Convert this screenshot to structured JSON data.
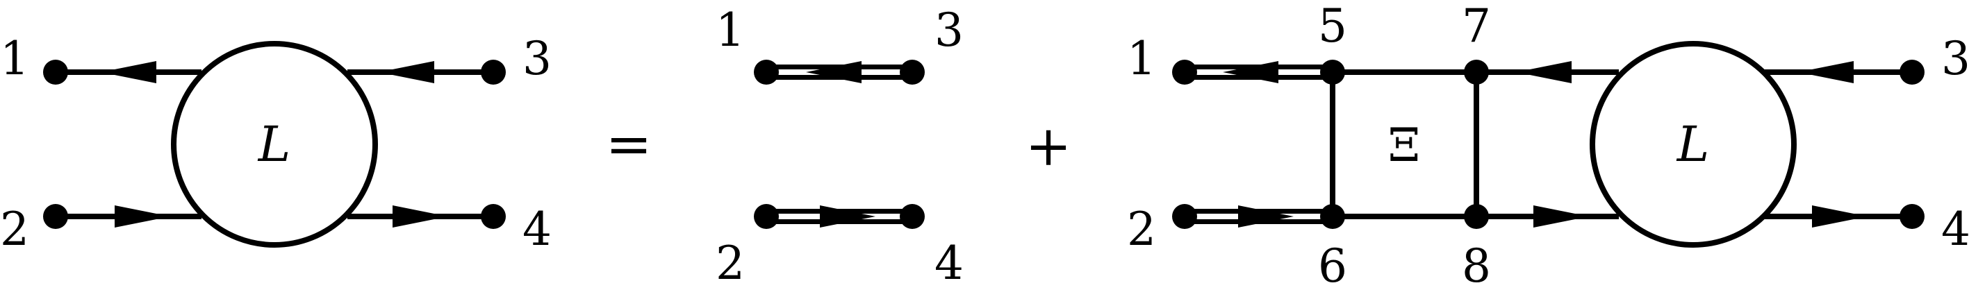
{
  "diagram": {
    "term1": {
      "labels": {
        "n1": "1",
        "n2": "2",
        "n3": "3",
        "n4": "4"
      },
      "blob_label": "L"
    },
    "operators": {
      "equals": "=",
      "plus": "+"
    },
    "term2": {
      "labels": {
        "n1": "1",
        "n2": "2",
        "n3": "3",
        "n4": "4"
      }
    },
    "term3": {
      "labels": {
        "n1": "1",
        "n2": "2",
        "n3": "3",
        "n4": "4",
        "n5": "5",
        "n6": "6",
        "n7": "7",
        "n8": "8"
      },
      "box_label": "Ξ",
      "blob_label": "L"
    }
  }
}
